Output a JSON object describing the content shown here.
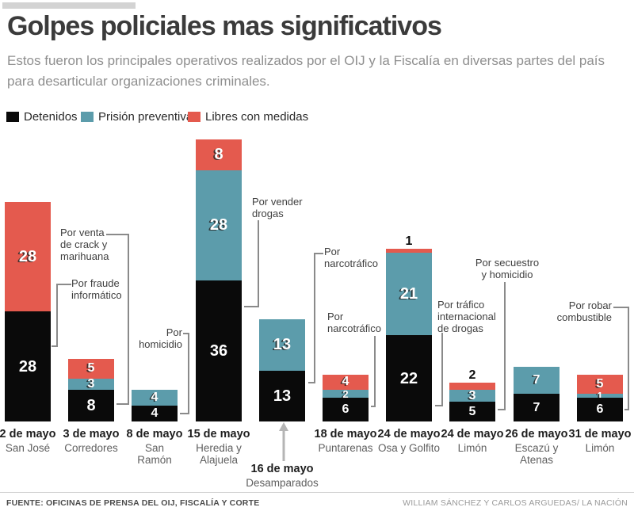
{
  "header": {
    "title": "Golpes policiales mas significativos",
    "subtitle": "Estos fueron los principales operativos realizados por el OIJ y la Fiscalía en diversas partes del país para desarticular organizaciones criminales."
  },
  "legend": [
    {
      "label": "Detenidos",
      "color": "#0a0a0a"
    },
    {
      "label": "Prisión preventiva",
      "color": "#5c9cab"
    },
    {
      "label": "Libres con medidas",
      "color": "#e45a4e"
    }
  ],
  "chart_data": {
    "type": "bar",
    "stacked": true,
    "series_names": [
      "Detenidos",
      "Prisión preventiva",
      "Libres con medidas"
    ],
    "categories": [
      "2 de mayo San José",
      "3 de mayo Corredores",
      "8 de mayo San Ramón",
      "15 de mayo Heredia y Alajuela",
      "16 de mayo Desamparados",
      "18 de mayo Puntarenas",
      "24 de mayo Osa y Golfito",
      "24 de mayo Limón",
      "26 de mayo Escazú y Atenas",
      "31 de mayo Limón"
    ],
    "bars": [
      {
        "date": "2 de mayo",
        "location": "San José",
        "detenidos": 28,
        "prision_preventiva": 0,
        "libres_con_medidas": 28
      },
      {
        "date": "3 de mayo",
        "location": "Corredores",
        "detenidos": 8,
        "prision_preventiva": 3,
        "libres_con_medidas": 5
      },
      {
        "date": "8 de mayo",
        "location": "San\nRamón",
        "detenidos": 4,
        "prision_preventiva": 4,
        "libres_con_medidas": 0
      },
      {
        "date": "15 de mayo",
        "location": "Heredia y\nAlajuela",
        "detenidos": 36,
        "prision_preventiva": 28,
        "libres_con_medidas": 8
      },
      {
        "date": "16 de mayo",
        "location": "Desamparados",
        "detenidos": 13,
        "prision_preventiva": 13,
        "libres_con_medidas": 0,
        "label_below_arrow": true
      },
      {
        "date": "18 de mayo",
        "location": "Puntarenas",
        "detenidos": 6,
        "prision_preventiva": 2,
        "libres_con_medidas": 4
      },
      {
        "date": "24 de mayo",
        "location": "Osa y Golfito",
        "detenidos": 22,
        "prision_preventiva": 21,
        "libres_con_medidas": 1
      },
      {
        "date": "24 de mayo",
        "location": "Limón",
        "detenidos": 5,
        "prision_preventiva": 3,
        "libres_con_medidas": 2
      },
      {
        "date": "26 de mayo",
        "location": "Escazú y\nAtenas",
        "detenidos": 7,
        "prision_preventiva": 7,
        "libres_con_medidas": 0
      },
      {
        "date": "31 de mayo",
        "location": "Limón",
        "detenidos": 6,
        "prision_preventiva": 1,
        "libres_con_medidas": 5
      }
    ],
    "annotations": [
      {
        "text": "Por venta\nde crack y\nmarihuana"
      },
      {
        "text": "Por fraude\ninformático"
      },
      {
        "text": "Por\nhomicidio"
      },
      {
        "text": "Por vender\ndrogas"
      },
      {
        "text": "Por\nnarcotráfico"
      },
      {
        "text": "Por\nnarcotráfico"
      },
      {
        "text": "Por tráfico\ninternacional\nde drogas"
      },
      {
        "text": "Por secuestro\ny homicidio"
      },
      {
        "text": "Por robar\ncombustible"
      }
    ]
  },
  "footer": {
    "source": "FUENTE: OFICINAS DE PRENSA DEL OIJ, FISCALÍA Y CORTE",
    "credit": "WILLIAM SÁNCHEZ Y CARLOS ARGUEDAS/ LA NACIÓN"
  }
}
